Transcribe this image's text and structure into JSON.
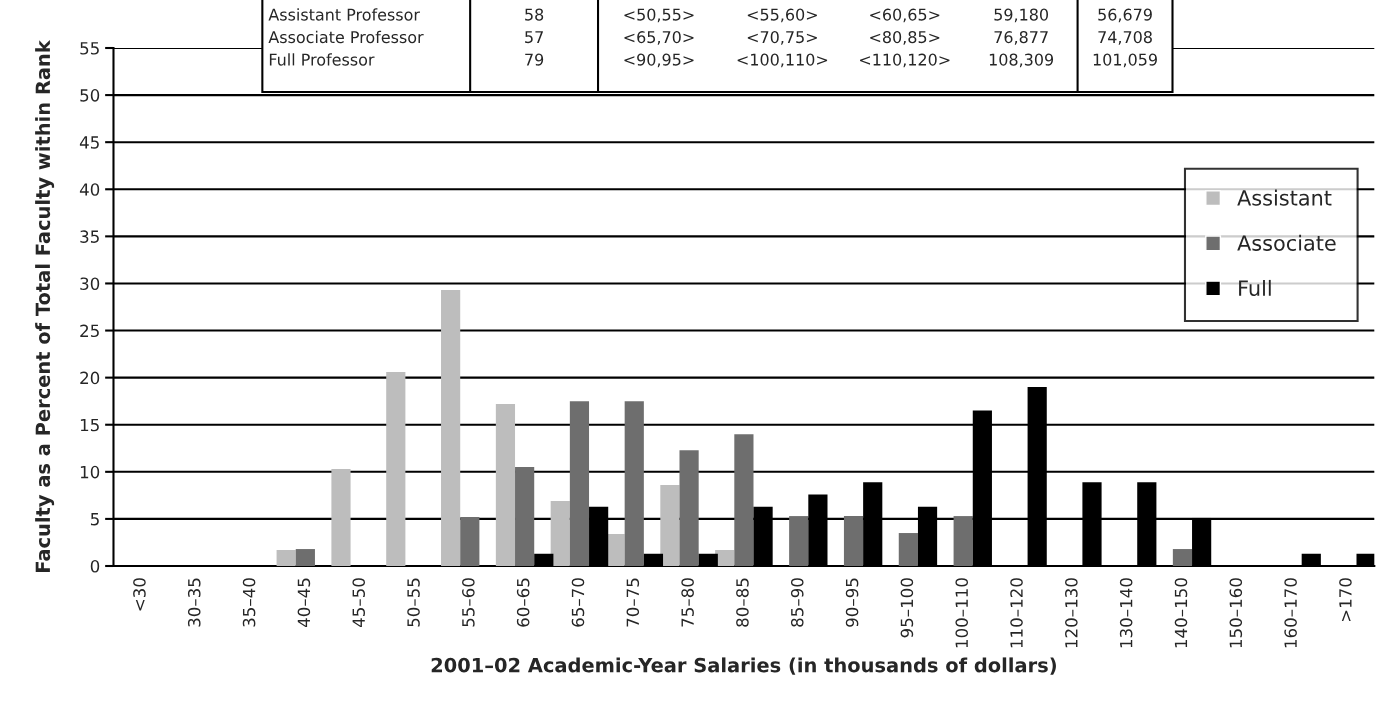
{
  "chart_data": {
    "type": "bar",
    "xlabel": "2001–02 Academic-Year Salaries (in thousands of dollars)",
    "ylabel": "Faculty as a Percent of Total Faculty within Rank",
    "categories": [
      "<30",
      "30–35",
      "35–40",
      "40–45",
      "45–50",
      "50–55",
      "55–60",
      "60–65",
      "65–70",
      "70–75",
      "75–80",
      "80–85",
      "85–90",
      "90–95",
      "95–100",
      "100–110",
      "110–120",
      "120–130",
      "130–140",
      "140–150",
      "150–160",
      "160–170",
      ">170"
    ],
    "series": [
      {
        "name": "Assistant",
        "color": "#bdbdbd",
        "values": [
          0,
          0,
          0,
          1.7,
          10.3,
          20.6,
          29.3,
          17.2,
          6.9,
          3.4,
          8.6,
          1.7,
          0,
          0,
          0,
          0,
          0,
          0,
          0,
          0,
          0,
          0,
          0
        ]
      },
      {
        "name": "Associate",
        "color": "#6e6e6e",
        "values": [
          0,
          0,
          0,
          1.8,
          0,
          0,
          5.2,
          10.5,
          17.5,
          17.5,
          12.3,
          14.0,
          5.3,
          5.3,
          3.5,
          5.3,
          0,
          0,
          0,
          1.8,
          0,
          0,
          0
        ]
      },
      {
        "name": "Full",
        "color": "#000000",
        "values": [
          0,
          0,
          0,
          0,
          0,
          0,
          0,
          1.3,
          6.3,
          1.3,
          1.3,
          6.3,
          7.6,
          8.9,
          6.3,
          16.5,
          19.0,
          8.9,
          8.9,
          5.1,
          0,
          1.3,
          1.3
        ]
      }
    ],
    "ylim": [
      0,
      55
    ],
    "yticks": [
      0,
      5,
      10,
      15,
      20,
      25,
      30,
      35,
      40,
      45,
      50,
      55
    ],
    "grid": "y",
    "legend": "right",
    "annotations": [
      "Assistant Professor",
      "58",
      "<50,55>",
      "<55,60>",
      "<60,65>",
      "59,180",
      "56,679",
      "Associate Professor",
      "57",
      "<65,70>",
      "<70,75>",
      "<80,85>",
      "76,877",
      "74,708",
      "Full Professor",
      "79",
      "<90,95>",
      "<100,110>",
      "<110,120>",
      "108,309",
      "101,059"
    ]
  }
}
